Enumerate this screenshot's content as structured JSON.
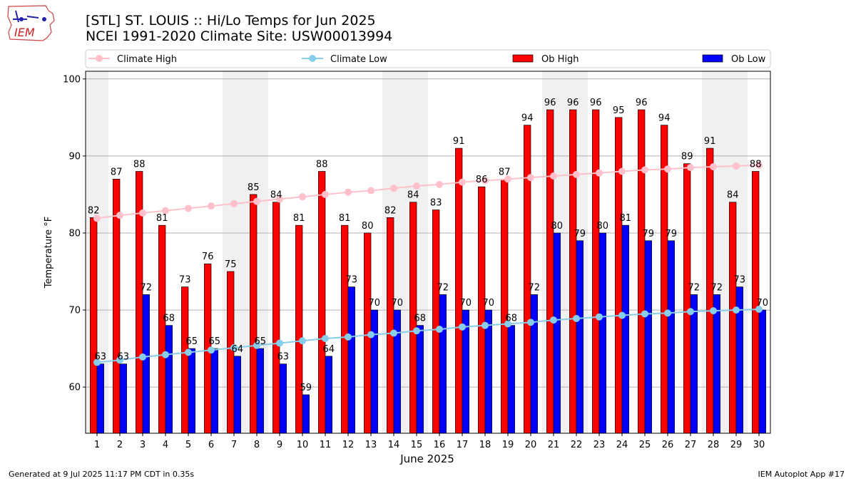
{
  "header": {
    "title_line1": "[STL] ST. LOUIS :: Hi/Lo Temps for Jun 2025",
    "title_line2": "NCEI 1991-2020 Climate Site: USW00013994",
    "logo_text": "IEM"
  },
  "footer": {
    "generated": "Generated at 9 Jul 2025 11:17 PM CDT in 0.35s",
    "app": "IEM Autoplot App #17"
  },
  "colors": {
    "ob_high": "#ff0000",
    "ob_low": "#0000ff",
    "climate_high": "#ffc0cb",
    "climate_low": "#87ceeb",
    "weekend_shade": "#f0f0f0",
    "grid": "#b0b0b0"
  },
  "chart_data": {
    "type": "bar",
    "xlabel": "June 2025",
    "ylabel": "Temperature °F",
    "ylim": [
      54,
      101
    ],
    "yticks": [
      60,
      70,
      80,
      90,
      100
    ],
    "grid": "horizontal",
    "legend_position": "top",
    "categories": [
      "1",
      "2",
      "3",
      "4",
      "5",
      "6",
      "7",
      "8",
      "9",
      "10",
      "11",
      "12",
      "13",
      "14",
      "15",
      "16",
      "17",
      "18",
      "19",
      "20",
      "21",
      "22",
      "23",
      "24",
      "25",
      "26",
      "27",
      "28",
      "29",
      "30"
    ],
    "shaded_days": [
      1,
      7,
      8,
      14,
      15,
      21,
      22,
      28,
      29
    ],
    "series": [
      {
        "name": "Climate High",
        "kind": "line",
        "values": [
          81.9,
          82.3,
          82.6,
          82.9,
          83.2,
          83.5,
          83.8,
          84.1,
          84.4,
          84.7,
          85.0,
          85.3,
          85.5,
          85.8,
          86.1,
          86.3,
          86.6,
          86.8,
          87.0,
          87.2,
          87.4,
          87.6,
          87.8,
          88.0,
          88.2,
          88.3,
          88.5,
          88.6,
          88.7,
          88.8
        ]
      },
      {
        "name": "Climate Low",
        "kind": "line",
        "values": [
          63.2,
          63.5,
          63.9,
          64.2,
          64.5,
          64.8,
          65.1,
          65.4,
          65.7,
          66.0,
          66.3,
          66.5,
          66.8,
          67.0,
          67.3,
          67.5,
          67.8,
          68.0,
          68.2,
          68.4,
          68.7,
          68.9,
          69.1,
          69.3,
          69.5,
          69.6,
          69.8,
          69.9,
          70.0,
          70.1
        ]
      },
      {
        "name": "Ob High",
        "kind": "bar",
        "values": [
          82,
          87,
          88,
          81,
          73,
          76,
          75,
          85,
          84,
          81,
          88,
          81,
          80,
          82,
          84,
          83,
          91,
          86,
          87,
          94,
          96,
          96,
          96,
          95,
          96,
          94,
          89,
          91,
          84,
          88
        ]
      },
      {
        "name": "Ob Low",
        "kind": "bar",
        "values": [
          63,
          63,
          72,
          68,
          65,
          65,
          64,
          65,
          63,
          59,
          64,
          73,
          70,
          70,
          68,
          72,
          70,
          70,
          68,
          72,
          80,
          79,
          80,
          81,
          79,
          79,
          72,
          72,
          73,
          70
        ]
      }
    ]
  }
}
